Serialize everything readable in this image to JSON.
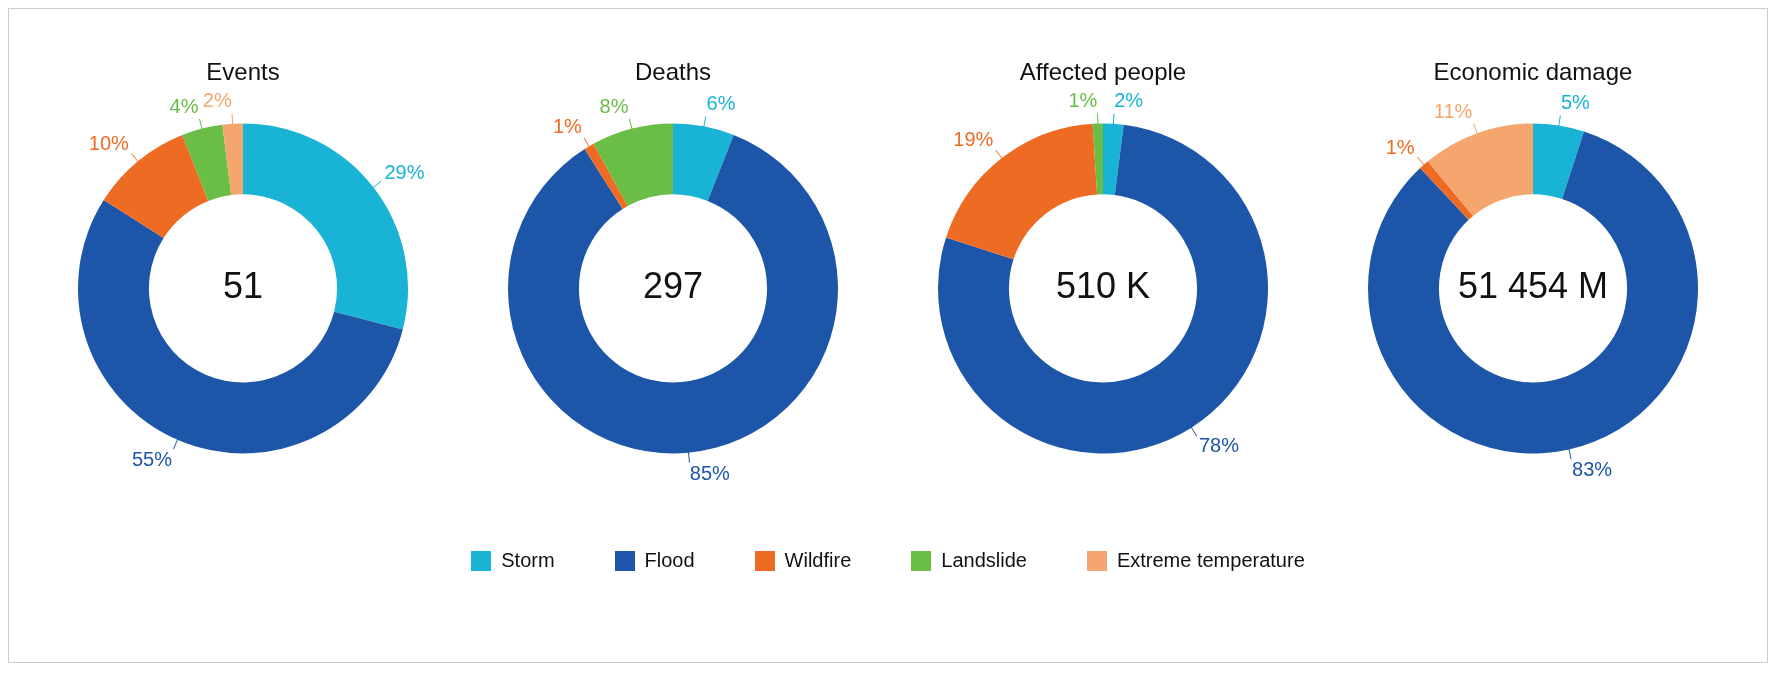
{
  "chart_data": [
    {
      "type": "donut",
      "title": "Events",
      "categories": [
        "Storm",
        "Flood",
        "Wildfire",
        "Landslide",
        "Extreme temperature"
      ],
      "values": [
        29,
        55,
        10,
        4,
        2
      ],
      "colors": [
        "#19b3d6",
        "#1d56a8",
        "#ee6b24",
        "#6abd45",
        "#f5a66e"
      ],
      "value_labels": [
        "29%",
        "55%",
        "10%",
        "4%",
        "2%"
      ],
      "annotations": [
        "51"
      ],
      "legend": "bottom"
    },
    {
      "type": "donut",
      "title": "Deaths",
      "categories": [
        null,
        null,
        null,
        null,
        null
      ],
      "values": [
        6,
        85,
        1,
        8,
        0
      ],
      "colors": [
        "#19b3d6",
        "#1d56a8",
        "#ee6b24",
        "#6abd45",
        "#f5a66e"
      ],
      "value_labels": [
        "6%",
        "85%",
        "1%",
        "8%",
        null
      ],
      "annotations": [
        "297"
      ]
    },
    {
      "type": "donut",
      "title": "Affected people",
      "categories": [
        null,
        null,
        null,
        null,
        null
      ],
      "values": [
        2,
        78,
        19,
        1,
        0
      ],
      "colors": [
        "#19b3d6",
        "#1d56a8",
        "#ee6b24",
        "#6abd45",
        "#f5a66e"
      ],
      "value_labels": [
        "2%",
        "78%",
        "19%",
        "1%",
        null
      ],
      "annotations": [
        "510 K"
      ]
    },
    {
      "type": "donut",
      "title": "Economic damage",
      "categories": [
        null,
        null,
        null,
        null,
        null
      ],
      "values": [
        5,
        83,
        1,
        0,
        11
      ],
      "colors": [
        "#19b3d6",
        "#1d56a8",
        "#ee6b24",
        "#6abd45",
        "#f5a66e"
      ],
      "value_labels": [
        "5%",
        "83%",
        "1%",
        null,
        "11%"
      ],
      "annotations": [
        "51 454 M"
      ]
    }
  ]
}
